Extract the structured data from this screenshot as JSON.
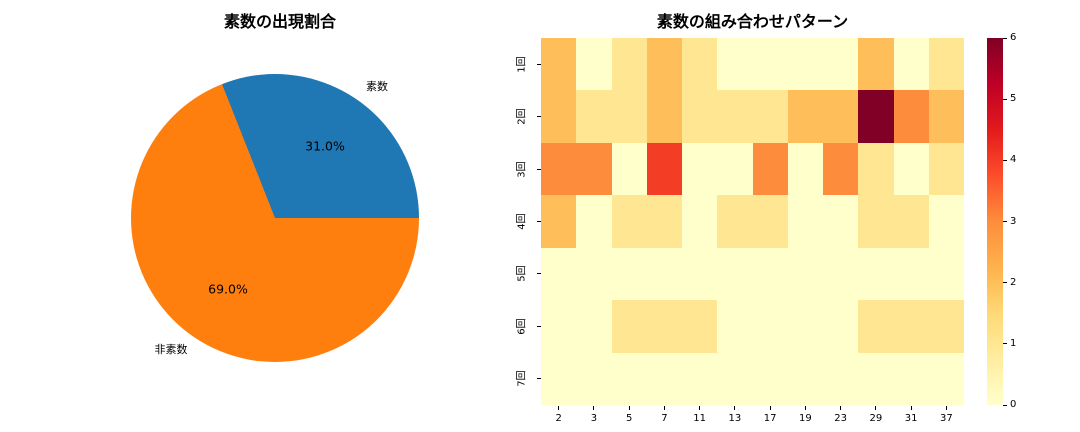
{
  "background_color": "#ffffff",
  "chart_data": [
    {
      "type": "pie",
      "title": "素数の出現割合",
      "labels": [
        "素数",
        "非素数"
      ],
      "values": [
        31.0,
        69.0
      ],
      "value_labels": [
        "31.0%",
        "69.0%"
      ],
      "colors": [
        "#1f77b4",
        "#ff7f0e"
      ],
      "start_angle": 0,
      "counterclock": true,
      "legend": "none"
    },
    {
      "type": "heatmap",
      "title": "素数の組み合わせパターン",
      "x_tick_labels": [
        "2",
        "3",
        "5",
        "7",
        "11",
        "13",
        "17",
        "19",
        "23",
        "29",
        "31",
        "37"
      ],
      "y_tick_labels": [
        "1回",
        "2回",
        "3回",
        "4回",
        "5回",
        "6回",
        "7回"
      ],
      "values": [
        [
          2,
          0,
          1,
          2,
          1,
          0,
          0,
          0,
          0,
          2,
          0,
          1
        ],
        [
          2,
          1,
          1,
          2,
          1,
          1,
          1,
          2,
          2,
          6,
          3,
          2
        ],
        [
          3,
          3,
          0,
          4,
          0,
          0,
          3,
          0,
          3,
          1,
          0,
          1
        ],
        [
          2,
          0,
          1,
          1,
          0,
          1,
          1,
          0,
          0,
          1,
          1,
          0
        ],
        [
          0,
          0,
          0,
          0,
          0,
          0,
          0,
          0,
          0,
          0,
          0,
          0
        ],
        [
          0,
          0,
          1,
          1,
          1,
          0,
          0,
          0,
          0,
          1,
          1,
          1
        ],
        [
          0,
          0,
          0,
          0,
          0,
          0,
          0,
          0,
          0,
          0,
          0,
          0
        ]
      ],
      "vmin": 0,
      "vmax": 6,
      "colormap": "YlOrRd",
      "colorbar_ticks": [
        "0",
        "1",
        "2",
        "3",
        "4",
        "5",
        "6"
      ],
      "value_colors": [
        "#ffffcc",
        "#fee692",
        "#febf5a",
        "#fd8d3c",
        "#f43d25",
        "#ca0923",
        "#800026"
      ],
      "colormap_stops": [
        "#ffffcc",
        "#ffeda0",
        "#fed976",
        "#feb24c",
        "#fd8d3c",
        "#fc4e2a",
        "#e31a1c",
        "#bd0026",
        "#800026"
      ],
      "grid": "off",
      "legend": "colorbar-right"
    }
  ]
}
